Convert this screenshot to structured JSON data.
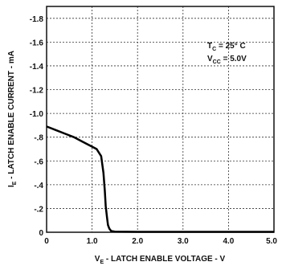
{
  "chart_data": {
    "type": "line",
    "title": "",
    "xlabel": {
      "prefix": "V",
      "sub": "E",
      "rest": " - LATCH ENABLE VOLTAGE - V"
    },
    "ylabel": {
      "prefix": "I",
      "sub": "E",
      "rest": " - LATCH ENABLE CURRENT - mA"
    },
    "xlim": [
      0,
      5.0
    ],
    "ylim": [
      0,
      -1.9
    ],
    "x_ticks": [
      0,
      1.0,
      2.0,
      3.0,
      4.0,
      5.0
    ],
    "x_tick_labels": [
      "0",
      "1.0",
      "2.0",
      "3.0",
      "4.0",
      "5.0"
    ],
    "y_ticks": [
      0,
      -0.2,
      -0.4,
      -0.6,
      -0.8,
      -1.0,
      -1.2,
      -1.4,
      -1.6,
      -1.8
    ],
    "y_tick_labels": [
      "0",
      "-.2",
      "-.4",
      "-.6",
      "-.8",
      "-1.0",
      "-1.2",
      "-1.4",
      "-1.6",
      "-1.8"
    ],
    "grid": true,
    "series": [
      {
        "x": [
          0,
          0.2,
          0.4,
          0.6,
          0.8,
          1.0,
          1.1,
          1.2,
          1.25,
          1.28,
          1.3,
          1.33,
          1.35,
          1.38,
          1.42,
          1.5,
          2.0,
          3.0,
          4.0,
          5.0
        ],
        "y": [
          -0.89,
          -0.86,
          -0.83,
          -0.8,
          -0.76,
          -0.72,
          -0.7,
          -0.64,
          -0.5,
          -0.35,
          -0.22,
          -0.12,
          -0.06,
          -0.03,
          -0.01,
          -0.005,
          -0.003,
          -0.003,
          -0.003,
          -0.003
        ]
      }
    ],
    "annotations": [
      {
        "main": "T",
        "sub": "C",
        "rest": " = 25° C"
      },
      {
        "main": "V",
        "sub": "CC",
        "rest": " = 5.0V"
      }
    ]
  }
}
